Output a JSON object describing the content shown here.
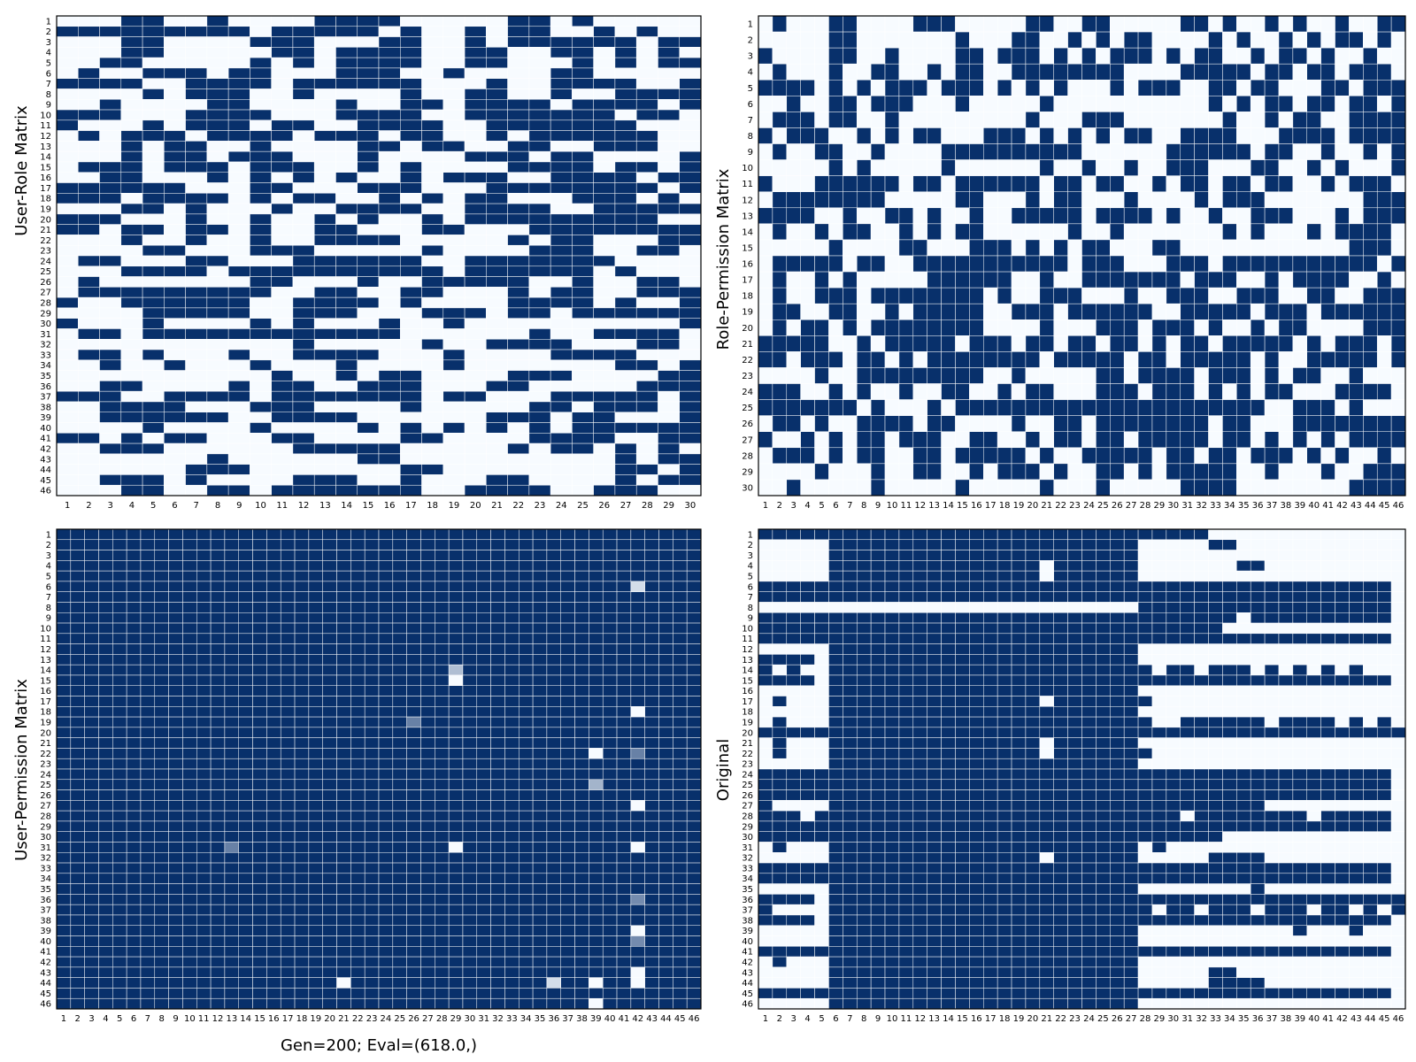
{
  "figure": {
    "caption": "Gen=200; Eval=(618.0,)",
    "colors": {
      "one": "#08306b",
      "zero": "#f7fbff"
    }
  },
  "chart_data": [
    {
      "type": "heatmap",
      "title": "",
      "ylabel": "User-Role Matrix",
      "xlabel": "",
      "rows": 46,
      "cols": 30,
      "x_ticks": "1..30",
      "y_ticks": "1..46",
      "value_range": [
        0,
        1
      ],
      "values": [
        "000110010000111100000110100000",
        "111111111011111010010110010100",
        "000110000111000110010111111011",
        "000110000011011110011001101010",
        "001100000101011110011000101011",
        "010011101100011100100001100000",
        "111100111101111110001001111001",
        "000010111001000010011001001111",
        "001000011000010011011110111101",
        "111000111100011110011111110110",
        "100010111011001111001111111000",
        "010111011110111011001011111100",
        "000101100100001101100110011100",
        "000101101110001000011101100001",
        "011101110111001010000111101101",
        "001100010101010010111001111011",
        "111111000110001110001111111101",
        "111011110101100101011000111010",
        "000110100010011110011110011111",
        "111000100100101001011111111100",
        "110110110100110001100011111111",
        "000100100100111100000101100011",
        "000011000111000001000011100110",
        "011000110001111110011111110000",
        "000111101111111111011111101000",
        "010000000110001001111100100110",
        "011111111100110011000101100111",
        "100111111001111010000111101001",
        "000011111001110001110110111111",
        "100010000101000100100000000001",
        "011011111111111100000010011110",
        "000000000001000001001111000110",
        "011010001001111000100001111000",
        "001001000100010000100000001101",
        "000000000010010110000111000011",
        "001100001011001110001100000111",
        "111001111011111110110001111101",
        "001111000111000010000011011101",
        "001111110011110000001110110001",
        "000010000100001010101010111111",
        "110101100011000011000011110011",
        "001110000001111100000101101010",
        "000000010000001100000000001011",
        "000000111000000011000000001101",
        "001110100001110010001100001011",
        "000110011011111110011110011100"
      ]
    },
    {
      "type": "heatmap",
      "title": "",
      "ylabel": "Role-Permission Matrix",
      "xlabel": "",
      "rows": 30,
      "cols": 46,
      "x_ticks": "1..46",
      "y_ticks": "1..30",
      "values": [
        "0100011000011100000110011000001101001010010011",
        "0000011000000010001100101011000010100101011010",
        "1000011001000011011101010111010110010110100100",
        "0100010011001011001111111100001111101101101110",
        "1111010101110111010101000101110011011000110111",
        "0010011011100010000010000000000010101101101101",
        "0111011001000000000100011100000001001011001111",
        "1011100101011000111010101011001111000111101111",
        "0100110010000111111111100000011111101100100101",
        "0000010100000100000010010010011100011001010001",
        "1000111111011011111101101100101101101100101110",
        "0111111110000011000101100010000101110000000111",
        "1111001001101001001111101111010010011100010111",
        "0100101100101011000000100100000001010001011110",
        "0000010000110001110101011000110000000000001110",
        "0111110110011111111111011100011101111111111101",
        "0100101000001111110010011111110111001011110010",
        "0100111011111111010011100010011100111001100111",
        "0110011001011111001110111111001111101110111111",
        "0101101011111111000010001110111010010110000111",
        "1111100101111101110110110110101101111101011101",
        "1101110110101111111101111101101111101001111101",
        "0000100111111111001000001101111011101011001000",
        "1110010100100110010110001110111010101100011110",
        "1111111010001011111111111111111111110011101000",
        "0110100111101100001001101111111101100011111111",
        "1001010110111001100101101101111101101010101111",
        "0111010110011011111010011111011011011101010010",
        "0000100010011001011101001101011111001000100111",
        "0010000010000010000010001000001111000000001111"
      ]
    },
    {
      "type": "heatmap",
      "title": "",
      "ylabel": "User-Permission Matrix",
      "xlabel": "",
      "rows": 46,
      "cols": 46,
      "x_ticks": "1..46",
      "y_ticks": "1..46",
      "base_value": 1,
      "exceptions": [
        {
          "row": 6,
          "col": 42,
          "value": 0.15
        },
        {
          "row": 14,
          "col": 29,
          "value": 0.3
        },
        {
          "row": 15,
          "col": 29,
          "value": 0
        },
        {
          "row": 18,
          "col": 42,
          "value": 0
        },
        {
          "row": 19,
          "col": 26,
          "value": 0.6
        },
        {
          "row": 22,
          "col": 39,
          "value": 0
        },
        {
          "row": 22,
          "col": 42,
          "value": 0.6
        },
        {
          "row": 25,
          "col": 39,
          "value": 0.35
        },
        {
          "row": 27,
          "col": 42,
          "value": 0
        },
        {
          "row": 31,
          "col": 13,
          "value": 0.6
        },
        {
          "row": 31,
          "col": 29,
          "value": 0
        },
        {
          "row": 31,
          "col": 42,
          "value": 0
        },
        {
          "row": 36,
          "col": 42,
          "value": 0.55
        },
        {
          "row": 39,
          "col": 42,
          "value": 0
        },
        {
          "row": 40,
          "col": 42,
          "value": 0.55
        },
        {
          "row": 43,
          "col": 42,
          "value": 0
        },
        {
          "row": 44,
          "col": 21,
          "value": 0
        },
        {
          "row": 44,
          "col": 36,
          "value": 0.15
        },
        {
          "row": 44,
          "col": 39,
          "value": 0
        },
        {
          "row": 44,
          "col": 42,
          "value": 0
        },
        {
          "row": 46,
          "col": 39,
          "value": 0
        }
      ]
    },
    {
      "type": "heatmap",
      "title": "",
      "ylabel": "Original",
      "xlabel": "",
      "rows": 46,
      "cols": 46,
      "x_ticks": "1..46",
      "y_ticks": "1..46",
      "values": [
        "1111111111111111111111111111111100000000000000",
        "0000011111111111111111111110000011000000000000",
        "0000011111111111111111111110000000000000000000",
        "0000011111111111111101111110000000110000000000",
        "0000011111111111111101111110000000000000000000",
        "1111111111111111111111111111111111111111111110",
        "1111111111111111111111111111111111111111111110",
        "0000000000000000000000000001111111111111111110",
        "1111111111111111111111111111111111011111111110",
        "1111111111111111111111111111111110000000000000",
        "1111111111111111111111111111111111111111111110",
        "0000011111111111111111111110000000000000000000",
        "1111011111111111111111111110000000000000000000",
        "1010011111111111111111111111011011101010101000",
        "1111011111111111111111111111111111111111111110",
        "0000011111111111111111111110000000000000000000",
        "0100011111111111111101111111000000000000000000",
        "0000011111111111111111111110000000000000000000",
        "0100011111111111111111111111001111110111101010",
        "1111111111111111111111111111111111111111111111",
        "0100011111111111111101111110000000000000000000",
        "0100011111111111111101111111000000000000000000",
        "0000011111111111111111111110000000000000000000",
        "1111111111111111111111111111111111111111111110",
        "1111111111111111111111111111111111111111111110",
        "1111111111111111111111111111111111111111111110",
        "1000011111111111111111111111111111110000000000",
        "1110111111111111111111111111110111111110111110",
        "1111111111111111111111111111111111111111111110",
        "1111111111111111111111111111111110000000000000",
        "0100011111111111111111111110100000000000000000",
        "0000011111111111111101111110000011110000000000",
        "1111111111111111111111111111111111111111111110",
        "1111111111111111111111111111111111111111111110",
        "0000011111111111111111111110000000010000000000",
        "1111011111111111111111111111111111111111111111",
        "1000011111111111111111111111011011101110110101",
        "1111011111111111111111111111111111111111111110",
        "0000011111111111111111111110000000000010001000",
        "0000011111111111111111111110000000000000000000",
        "1111111111111111111111111111111111111111111110",
        "0100011111111111111111111110000000000000000000",
        "0000011111111111111111111110000011000000000000",
        "0000011111111111111111111110000011110000000000",
        "1111111111111111111111111111111111111111111110",
        "0000011111111111111111111110000000000000000000"
      ]
    }
  ]
}
